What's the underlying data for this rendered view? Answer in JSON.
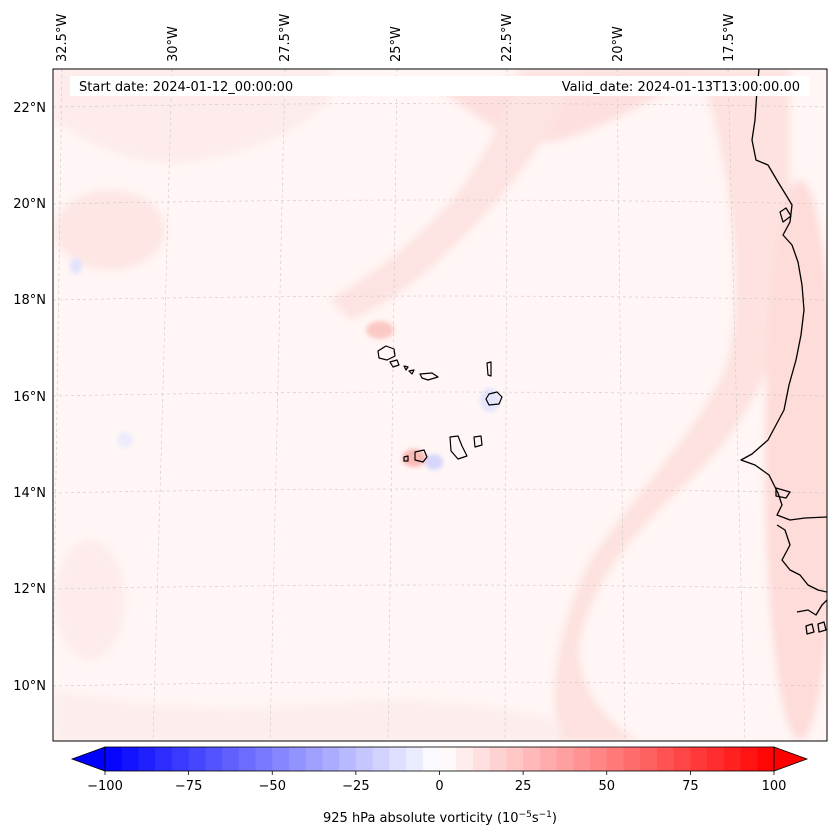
{
  "header": {
    "start_date": "Start date: 2024-01-12_00:00:00",
    "valid_date": "Valid_date: 2024-01-13T13:00:00.00"
  },
  "longitude_labels": [
    "32.5°W",
    "30°W",
    "27.5°W",
    "25°W",
    "22.5°W",
    "20°W",
    "17.5°W"
  ],
  "latitude_labels": [
    "22°N",
    "20°N",
    "18°N",
    "16°N",
    "14°N",
    "12°N",
    "10°N"
  ],
  "colorbar": {
    "title": "925 hPa absolute vorticity (10",
    "title_exp1": "−5",
    "title_mid": "s",
    "title_exp2": "−1",
    "title_end": ")",
    "tick_labels": [
      "−100",
      "−75",
      "−50",
      "−25",
      "0",
      "25",
      "50",
      "75",
      "100"
    ],
    "range": [
      -100,
      100
    ],
    "levels": 40,
    "colormap": "bwr",
    "extend": "both"
  },
  "colors": {
    "negative_end": "#0000ff",
    "neutral": "#ffffff",
    "positive_end": "#ff0000",
    "coastline": "#000000",
    "gridline": "#c8c8c8"
  }
}
